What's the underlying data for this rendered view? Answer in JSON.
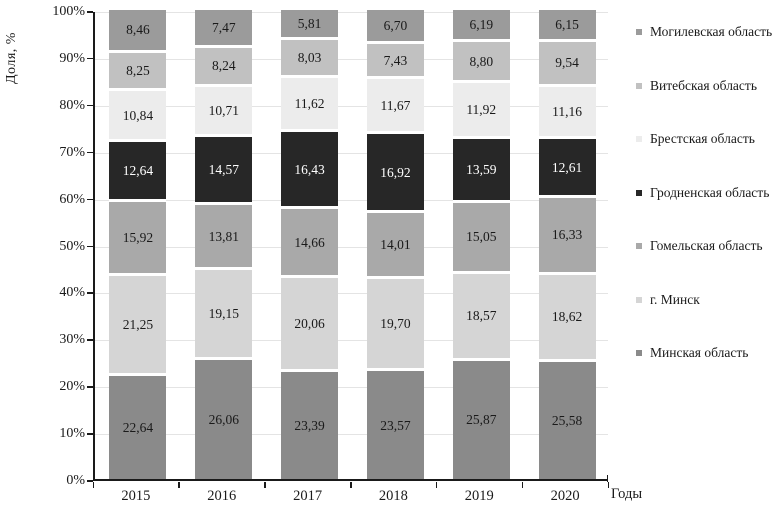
{
  "axes": {
    "y_title": "Доля, %",
    "x_title": "Годы"
  },
  "chart_data": {
    "type": "bar",
    "variant": "stacked-100-percent",
    "title": "",
    "xlabel": "Годы",
    "ylabel": "Доля, %",
    "ylim": [
      0,
      100
    ],
    "ytick_step": 10,
    "ytick_labels": [
      "0%",
      "10%",
      "20%",
      "30%",
      "40%",
      "50%",
      "60%",
      "70%",
      "80%",
      "90%",
      "100%"
    ],
    "categories": [
      "2015",
      "2016",
      "2017",
      "2018",
      "2019",
      "2020"
    ],
    "grid": "horizontal",
    "legend_position": "right",
    "decimal_separator": ",",
    "stack_order": "bottom-to-top",
    "series": [
      {
        "name": "Минская область",
        "color": "#8a8a8a",
        "label_color": "#1a1a1a",
        "values": [
          22.64,
          26.06,
          23.39,
          23.57,
          25.87,
          25.58
        ]
      },
      {
        "name": "г. Минск",
        "color": "#d5d5d5",
        "label_color": "#1a1a1a",
        "values": [
          21.25,
          19.15,
          20.06,
          19.7,
          18.57,
          18.62
        ]
      },
      {
        "name": "Гомельская область",
        "color": "#a9a9a9",
        "label_color": "#1a1a1a",
        "values": [
          15.92,
          13.81,
          14.66,
          14.01,
          15.05,
          16.33
        ]
      },
      {
        "name": "Гродненская область",
        "color": "#272727",
        "label_color": "#ffffff",
        "values": [
          12.64,
          14.57,
          16.43,
          16.92,
          13.59,
          12.61
        ]
      },
      {
        "name": "Брестская область",
        "color": "#ececec",
        "label_color": "#1a1a1a",
        "values": [
          10.84,
          10.71,
          11.62,
          11.67,
          11.92,
          11.16
        ]
      },
      {
        "name": "Витебская область",
        "color": "#c1c1c1",
        "label_color": "#1a1a1a",
        "values": [
          8.25,
          8.24,
          8.03,
          7.43,
          8.8,
          9.54
        ]
      },
      {
        "name": "Могилевская область",
        "color": "#9b9b9b",
        "label_color": "#1a1a1a",
        "values": [
          8.46,
          7.47,
          5.81,
          6.7,
          6.19,
          6.15
        ]
      }
    ],
    "legend_items": [
      "Могилевская область",
      "Витебская область",
      "Брестская область",
      "Гродненская область",
      "Гомельская область",
      "г. Минск",
      "Минская область"
    ]
  }
}
